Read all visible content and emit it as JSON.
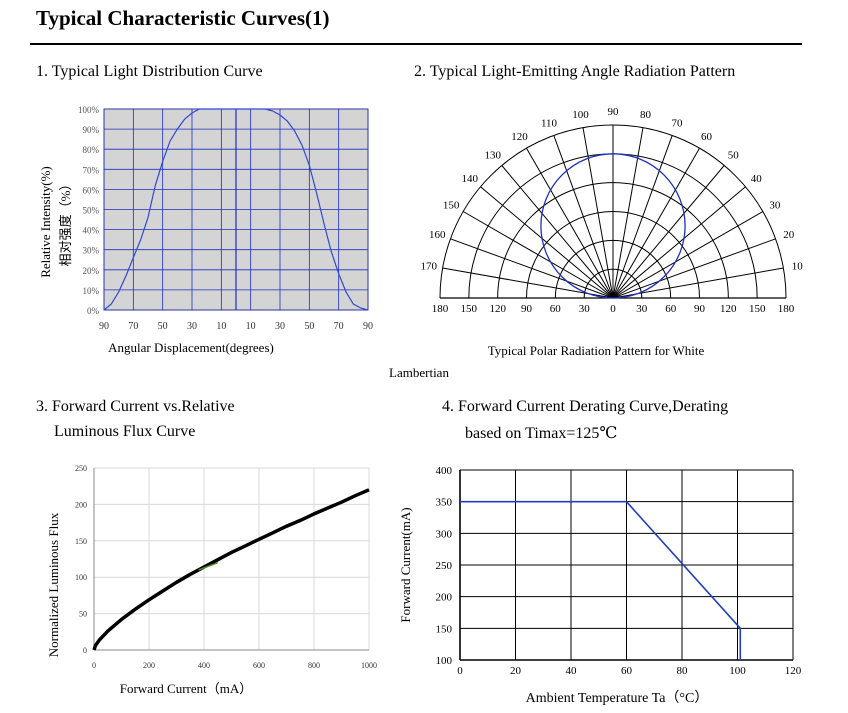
{
  "page": {
    "title": "Typical Characteristic Curves(1)"
  },
  "sections": {
    "s1": "1. Typical Light Distribution Curve",
    "s2": "2. Typical Light-Emitting Angle Radiation Pattern",
    "s3_line1": "3. Forward Current vs.Relative",
    "s3_line2": "Luminous Flux Curve",
    "s4_line1": "4. Forward Current Derating Curve,Derating",
    "s4_line2": "based on Timax=125℃"
  },
  "chart_data": [
    {
      "id": "light-distribution",
      "type": "line",
      "xlabel": "Angular Displacement(degrees)",
      "ylabel": "Relative Intensity(%)",
      "ylabel_cn": "相对强度（%）",
      "x_tick_labels": [
        "90",
        "70",
        "50",
        "30",
        "10",
        "10",
        "30",
        "50",
        "70",
        "90"
      ],
      "y_tick_labels": [
        "0%",
        "10%",
        "20%",
        "30%",
        "40%",
        "50%",
        "60%",
        "70%",
        "80%",
        "90%",
        "100%"
      ],
      "ylim": [
        0,
        100
      ],
      "xlim": [
        -90,
        90
      ],
      "grid": true,
      "background": "#d4d4d4",
      "grid_color": "#1f2fbf",
      "line_color": "#2f48d8",
      "x": [
        -90,
        -85,
        -80,
        -75,
        -70,
        -65,
        -60,
        -55,
        -50,
        -45,
        -40,
        -35,
        -30,
        -25,
        -20,
        -15,
        -10,
        -5,
        0,
        5,
        10,
        15,
        20,
        25,
        30,
        35,
        40,
        45,
        50,
        55,
        60,
        65,
        70,
        75,
        80,
        85,
        90
      ],
      "y": [
        0,
        3,
        9,
        17,
        26,
        35,
        46,
        62,
        74,
        84,
        90,
        95,
        98,
        100,
        100,
        100,
        100,
        100,
        100,
        100,
        100,
        100,
        100,
        99,
        97,
        94,
        89,
        82,
        72,
        58,
        43,
        29,
        18,
        9,
        3,
        1,
        0
      ]
    },
    {
      "id": "radiation-pattern",
      "type": "polar",
      "angle_labels": [
        "10",
        "20",
        "30",
        "40",
        "50",
        "60",
        "70",
        "80",
        "90",
        "100",
        "110",
        "120",
        "130",
        "140",
        "150",
        "160",
        "170"
      ],
      "bottom_labels": [
        "180",
        "150",
        "120",
        "90",
        "60",
        "30",
        "0",
        "30",
        "60",
        "90",
        "120",
        "150",
        "180"
      ],
      "caption": "Typical  Polar Radiation Pattern for White",
      "caption_line2": "Lambertian",
      "rings": 6,
      "pattern": "lambertian",
      "pattern_color": "#1f2fbf"
    },
    {
      "id": "flux-curve",
      "type": "line",
      "xlabel": "Forward Current（mA）",
      "ylabel": "Normalized Luminous Flux",
      "x_tick_labels": [
        "0",
        "200",
        "400",
        "600",
        "800",
        "1000"
      ],
      "y_tick_labels": [
        "0",
        "50",
        "100",
        "150",
        "200",
        "250"
      ],
      "xlim": [
        0,
        1000
      ],
      "ylim": [
        0,
        250
      ],
      "grid": true,
      "x": [
        0,
        5,
        20,
        50,
        100,
        150,
        200,
        250,
        300,
        350,
        400,
        450,
        500,
        550,
        600,
        650,
        700,
        750,
        800,
        850,
        900,
        950,
        1000
      ],
      "y": [
        0,
        6,
        14,
        26,
        42,
        56,
        69,
        81,
        93,
        104,
        114,
        124,
        134,
        143,
        152,
        161,
        170,
        178,
        187,
        195,
        203,
        212,
        220
      ]
    },
    {
      "id": "derating-curve",
      "type": "line",
      "xlabel": "Ambient Temperature Ta（°C）",
      "ylabel": "Forward Current(mA)",
      "x_tick_labels": [
        "0",
        "20",
        "40",
        "60",
        "80",
        "100",
        "120"
      ],
      "y_tick_labels": [
        "100",
        "150",
        "200",
        "250",
        "300",
        "350",
        "400"
      ],
      "xlim": [
        0,
        120
      ],
      "ylim": [
        100,
        400
      ],
      "grid": true,
      "line_color": "#1f3fbf",
      "x": [
        0,
        60,
        101,
        101
      ],
      "y": [
        350,
        350,
        150,
        100
      ]
    }
  ]
}
